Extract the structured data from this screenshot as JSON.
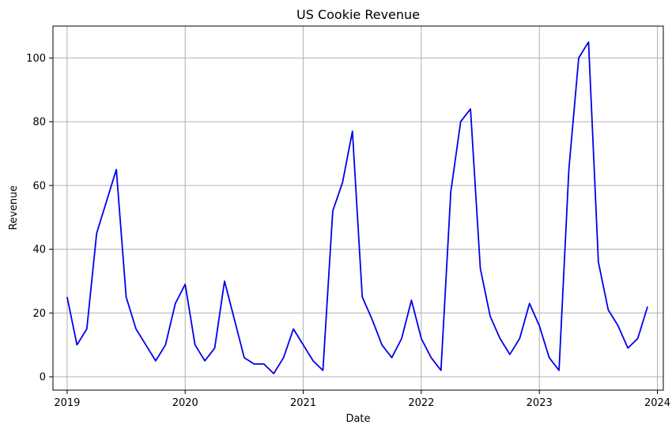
{
  "chart_data": {
    "type": "line",
    "title": "US Cookie Revenue",
    "xlabel": "Date",
    "ylabel": "Revenue",
    "grid": true,
    "line_color": "#0000ee",
    "grid_color": "#b0b0b0",
    "x_start": {
      "year": 2019,
      "month": 1
    },
    "x_ticks": [
      "2019",
      "2020",
      "2021",
      "2022",
      "2023",
      "2024"
    ],
    "y_ticks": [
      0,
      20,
      40,
      60,
      80,
      100
    ],
    "xlim": [
      2018.88,
      2024.05
    ],
    "ylim": [
      -4.2,
      110
    ],
    "series": [
      {
        "name": "Revenue",
        "values": [
          25,
          10,
          15,
          45,
          55,
          65,
          25,
          15,
          10,
          5,
          10,
          23,
          29,
          10,
          5,
          9,
          30,
          18,
          6,
          4,
          4,
          1,
          6,
          15,
          10,
          5,
          2,
          52,
          61,
          77,
          25,
          18,
          10,
          6,
          12,
          24,
          12,
          6,
          2,
          58,
          80,
          84,
          34,
          19,
          12,
          7,
          12,
          23,
          16,
          6,
          2,
          65,
          100,
          105,
          36,
          21,
          16,
          9,
          12,
          22
        ]
      }
    ]
  }
}
